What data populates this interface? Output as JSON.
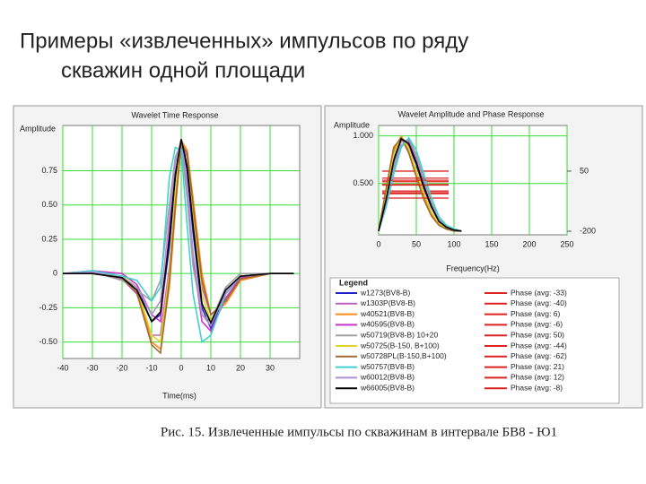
{
  "title": [
    "Примеры «извлеченных» импульсов по ряду",
    "скважин одной площади"
  ],
  "caption": "Рис. 15. Извлеченные импульсы по скважинам в интервале БВ8 - Ю1",
  "chart_data": [
    {
      "type": "line",
      "title": "Wavelet Time Response",
      "y_label": "Amplitude",
      "x_label": "Time(ms)",
      "x": [
        -40,
        -30,
        -20,
        -15,
        -10,
        -7,
        -4,
        -2,
        0,
        2,
        4,
        7,
        10,
        15,
        20,
        30,
        38
      ],
      "xlim": [
        -40,
        40
      ],
      "xticks": [
        -40,
        -30,
        -20,
        -10,
        0,
        10,
        20,
        30
      ],
      "ylim": [
        -0.62,
        1.08
      ],
      "yticks": [
        {
          "value": 0.75,
          "label": "0.75"
        },
        {
          "value": 0.5,
          "label": "0.50"
        },
        {
          "value": 0.25,
          "label": "0.25"
        },
        0,
        {
          "value": -0.25,
          "label": "-0.25"
        },
        {
          "value": -0.5,
          "label": "-0.50"
        }
      ],
      "grid": true,
      "grid_color": "#33dd33",
      "series": [
        {
          "color": "#1f1fcc",
          "values": [
            0,
            0,
            -0.02,
            -0.1,
            -0.35,
            -0.3,
            0.2,
            0.7,
            0.98,
            0.75,
            0.3,
            -0.25,
            -0.4,
            -0.15,
            -0.02,
            0,
            0
          ]
        },
        {
          "color": "#c060c0",
          "values": [
            0,
            0.01,
            -0.04,
            -0.15,
            -0.45,
            -0.45,
            0.05,
            0.55,
            0.95,
            0.85,
            0.45,
            -0.1,
            -0.3,
            -0.2,
            -0.05,
            0,
            0
          ]
        },
        {
          "color": "#ff8c1a",
          "values": [
            0,
            0,
            -0.03,
            -0.12,
            -0.5,
            -0.55,
            -0.1,
            0.45,
            0.97,
            0.9,
            0.55,
            0,
            -0.3,
            -0.22,
            -0.05,
            0,
            0
          ]
        },
        {
          "color": "#cc33cc",
          "values": [
            0,
            0.02,
            0,
            -0.08,
            -0.3,
            -0.35,
            0.3,
            0.8,
            0.97,
            0.6,
            0.1,
            -0.35,
            -0.42,
            -0.18,
            -0.03,
            0,
            0
          ]
        },
        {
          "color": "#a0a0a0",
          "values": [
            0,
            0.01,
            -0.05,
            -0.12,
            -0.2,
            -0.05,
            0.5,
            0.85,
            0.95,
            0.55,
            0.05,
            -0.3,
            -0.35,
            -0.1,
            0,
            0,
            0
          ]
        },
        {
          "color": "#e0d820",
          "values": [
            0,
            0,
            -0.02,
            -0.1,
            -0.45,
            -0.5,
            0,
            0.6,
            0.96,
            0.8,
            0.4,
            -0.15,
            -0.35,
            -0.15,
            -0.02,
            0,
            0
          ]
        },
        {
          "color": "#a06a30",
          "values": [
            0,
            0,
            -0.03,
            -0.14,
            -0.52,
            -0.58,
            -0.05,
            0.5,
            0.95,
            0.88,
            0.5,
            -0.05,
            -0.3,
            -0.2,
            -0.04,
            0,
            0
          ]
        },
        {
          "color": "#40d0d0",
          "values": [
            0,
            0.02,
            -0.02,
            -0.05,
            -0.2,
            -0.1,
            0.7,
            0.92,
            0.9,
            0.35,
            -0.15,
            -0.5,
            -0.45,
            -0.15,
            -0.02,
            0,
            0
          ]
        },
        {
          "color": "#b090d0",
          "values": [
            0,
            0.01,
            -0.03,
            -0.1,
            -0.3,
            -0.2,
            0.4,
            0.8,
            0.98,
            0.65,
            0.15,
            -0.3,
            -0.38,
            -0.14,
            -0.02,
            0,
            0
          ]
        },
        {
          "color": "#000000",
          "values": [
            0,
            0,
            -0.03,
            -0.12,
            -0.35,
            -0.28,
            0.25,
            0.72,
            0.98,
            0.78,
            0.35,
            -0.22,
            -0.36,
            -0.12,
            -0.02,
            0,
            0
          ]
        }
      ]
    },
    {
      "type": "line",
      "title": "Wavelet Amplitude and Phase Response",
      "y_label": "Amplitude",
      "x_label": "Frequency(Hz)",
      "legend_title": "Legend",
      "phase_color": "#dd2222",
      "x": [
        0,
        10,
        20,
        30,
        40,
        50,
        60,
        70,
        80,
        90,
        100,
        110
      ],
      "xlim": [
        0,
        250
      ],
      "xticks": [
        0,
        50,
        100,
        150,
        200,
        250
      ],
      "ylim": [
        -0.04,
        1.11
      ],
      "yticks": [
        {
          "value": 0.5,
          "label": "0.500"
        },
        {
          "value": 1,
          "label": "1.000"
        }
      ],
      "y2lim": [
        -215,
        240
      ],
      "y2ticks": [
        50,
        -200
      ],
      "grid": true,
      "grid_color": "#33dd33",
      "series": [
        {
          "name": "w1273(BV8-B)",
          "color": "#1f1fcc",
          "values": [
            0,
            0.35,
            0.75,
            0.98,
            0.9,
            0.7,
            0.45,
            0.25,
            0.1,
            0.04,
            0.01,
            0
          ],
          "phase": -33,
          "phase_label": "Phase (avg: -33)"
        },
        {
          "name": "w1303P(BV8-B)",
          "color": "#c060c0",
          "values": [
            0,
            0.4,
            0.82,
            0.97,
            0.85,
            0.62,
            0.38,
            0.2,
            0.08,
            0.03,
            0.01,
            0
          ],
          "phase": -40,
          "phase_label": "Phase (avg: -40)"
        },
        {
          "name": "w40521(BV8-B)",
          "color": "#ff8c1a",
          "values": [
            0,
            0.42,
            0.85,
            1,
            0.88,
            0.6,
            0.35,
            0.18,
            0.07,
            0.02,
            0,
            0
          ],
          "phase": 6,
          "phase_label": "Phase (avg: 6)"
        },
        {
          "name": "w40595(BV8-B)",
          "color": "#cc33cc",
          "values": [
            0,
            0.3,
            0.7,
            0.95,
            0.95,
            0.75,
            0.5,
            0.28,
            0.12,
            0.05,
            0.02,
            0
          ],
          "phase": -6,
          "phase_label": "Phase (avg: -6)"
        },
        {
          "name": "w50719(BV8-B) 10+20",
          "color": "#a0a0a0",
          "values": [
            0,
            0.28,
            0.65,
            0.9,
            0.97,
            0.8,
            0.55,
            0.3,
            0.13,
            0.05,
            0.02,
            0
          ],
          "phase": 50,
          "phase_label": "Phase (avg: 50)"
        },
        {
          "name": "w50725(B-150, B+100)",
          "color": "#e0d820",
          "values": [
            0,
            0.38,
            0.8,
            0.99,
            0.87,
            0.63,
            0.4,
            0.2,
            0.08,
            0.03,
            0.01,
            0
          ],
          "phase": -44,
          "phase_label": "Phase (avg: -44)"
        },
        {
          "name": "w50728PL(B-150,B+100)",
          "color": "#a06a30",
          "values": [
            0,
            0.45,
            0.88,
            0.98,
            0.82,
            0.57,
            0.33,
            0.16,
            0.06,
            0.02,
            0,
            0
          ],
          "phase": -62,
          "phase_label": "Phase (avg: -62)"
        },
        {
          "name": "w50757(BV8-B)",
          "color": "#40d0d0",
          "values": [
            0,
            0.25,
            0.6,
            0.88,
            0.98,
            0.85,
            0.6,
            0.35,
            0.15,
            0.06,
            0.02,
            0
          ],
          "phase": 21,
          "phase_label": "Phase (avg: 21)"
        },
        {
          "name": "w60012(BV8-B)",
          "color": "#b090d0",
          "values": [
            0,
            0.3,
            0.7,
            0.94,
            0.93,
            0.74,
            0.5,
            0.27,
            0.11,
            0.04,
            0.01,
            0
          ],
          "phase": 12,
          "phase_label": "Phase (avg: 12)"
        },
        {
          "name": "w66005(BV8-B)",
          "color": "#000000",
          "values": [
            0,
            0.33,
            0.74,
            0.97,
            0.92,
            0.72,
            0.47,
            0.26,
            0.1,
            0.04,
            0.01,
            0
          ],
          "phase": -8,
          "phase_label": "Phase (avg: -8)"
        }
      ]
    }
  ]
}
